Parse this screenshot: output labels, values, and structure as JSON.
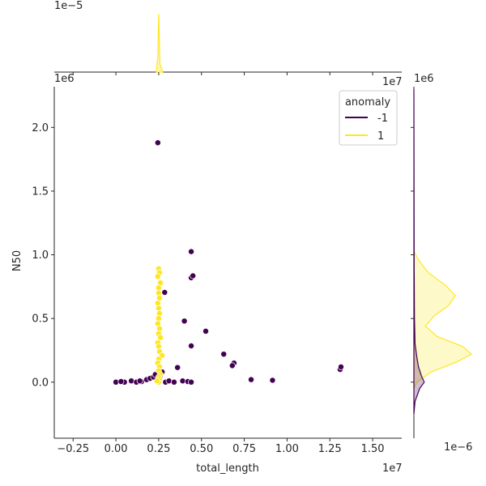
{
  "chart_data": {
    "type": "scatter",
    "title": "",
    "xlabel": "total_length",
    "ylabel": "N50",
    "x_offset_label": "1e7",
    "y_offset_label": "1e6",
    "top_marginal_offset_label": "1e−5",
    "right_marginal_offset_label": "1e6",
    "right_marginal_x_offset_label": "1e−6",
    "top_marginal_axis_offset": "1e7",
    "right_marginal_y_offset": "1e6",
    "xlim": [
      -0.36,
      1.67
    ],
    "ylim": [
      -0.44,
      2.32
    ],
    "x_ticks": [
      -0.25,
      0.0,
      0.25,
      0.5,
      0.75,
      1.0,
      1.25,
      1.5
    ],
    "x_tick_labels": [
      "−0.25",
      "0.00",
      "0.25",
      "0.50",
      "0.75",
      "1.00",
      "1.25",
      "1.50"
    ],
    "y_ticks": [
      0.0,
      0.5,
      1.0,
      1.5,
      2.0
    ],
    "y_tick_labels": [
      "0.0",
      "0.5",
      "1.0",
      "1.5",
      "2.0"
    ],
    "grid": false,
    "legend": {
      "title": "anomaly",
      "placement": "top-right",
      "entries": [
        {
          "label": "-1",
          "color": "#440154"
        },
        {
          "label": "1",
          "color": "#fde725"
        }
      ]
    },
    "series": [
      {
        "name": "-1",
        "color": "#440154",
        "points": [
          [
            0.245,
            1.88
          ],
          [
            0.44,
            1.025
          ],
          [
            0.44,
            0.82
          ],
          [
            0.45,
            0.835
          ],
          [
            0.285,
            0.705
          ],
          [
            0.4,
            0.48
          ],
          [
            0.525,
            0.4
          ],
          [
            0.44,
            0.285
          ],
          [
            0.63,
            0.22
          ],
          [
            0.69,
            0.15
          ],
          [
            0.68,
            0.13
          ],
          [
            0.36,
            0.115
          ],
          [
            0.79,
            0.02
          ],
          [
            0.915,
            0.015
          ],
          [
            1.31,
            0.1
          ],
          [
            1.315,
            0.12
          ],
          [
            0.0,
            0.0
          ],
          [
            0.05,
            0.0
          ],
          [
            0.09,
            0.01
          ],
          [
            0.12,
            0.0
          ],
          [
            0.15,
            0.005
          ],
          [
            0.18,
            0.02
          ],
          [
            0.2,
            0.03
          ],
          [
            0.22,
            0.04
          ],
          [
            0.23,
            0.06
          ],
          [
            0.26,
            0.05
          ],
          [
            0.29,
            0.0
          ],
          [
            0.31,
            0.01
          ],
          [
            0.34,
            0.0
          ],
          [
            0.39,
            0.01
          ],
          [
            0.42,
            0.005
          ],
          [
            0.44,
            0.0
          ],
          [
            0.14,
            0.01
          ],
          [
            0.03,
            0.005
          ],
          [
            0.27,
            0.08
          ]
        ]
      },
      {
        "name": "1",
        "color": "#fde725",
        "points": [
          [
            0.25,
            0.89
          ],
          [
            0.255,
            0.86
          ],
          [
            0.245,
            0.83
          ],
          [
            0.26,
            0.78
          ],
          [
            0.25,
            0.74
          ],
          [
            0.25,
            0.7
          ],
          [
            0.255,
            0.66
          ],
          [
            0.245,
            0.62
          ],
          [
            0.25,
            0.58
          ],
          [
            0.255,
            0.54
          ],
          [
            0.25,
            0.5
          ],
          [
            0.245,
            0.46
          ],
          [
            0.255,
            0.42
          ],
          [
            0.25,
            0.38
          ],
          [
            0.26,
            0.35
          ],
          [
            0.245,
            0.31
          ],
          [
            0.25,
            0.28
          ],
          [
            0.255,
            0.24
          ],
          [
            0.27,
            0.21
          ],
          [
            0.25,
            0.18
          ],
          [
            0.245,
            0.15
          ],
          [
            0.255,
            0.12
          ],
          [
            0.25,
            0.09
          ],
          [
            0.26,
            0.06
          ],
          [
            0.25,
            0.04
          ],
          [
            0.255,
            0.02
          ],
          [
            0.25,
            0.0
          ],
          [
            0.24,
            0.01
          ]
        ]
      }
    ],
    "top_marginal": {
      "series": [
        {
          "name": "-1",
          "peak_x": 0.25,
          "height": 0.0
        },
        {
          "name": "1",
          "peak_x": 0.25,
          "height": 1.0
        }
      ]
    },
    "right_marginal": {
      "density_1": [
        [
          -0.05,
          0.0
        ],
        [
          0.0,
          0.05
        ],
        [
          0.08,
          0.3
        ],
        [
          0.16,
          0.75
        ],
        [
          0.22,
          1.0
        ],
        [
          0.28,
          0.85
        ],
        [
          0.36,
          0.4
        ],
        [
          0.44,
          0.2
        ],
        [
          0.52,
          0.35
        ],
        [
          0.6,
          0.6
        ],
        [
          0.68,
          0.72
        ],
        [
          0.76,
          0.55
        ],
        [
          0.86,
          0.25
        ],
        [
          0.96,
          0.08
        ],
        [
          1.03,
          0.0
        ]
      ],
      "density_neg1": [
        [
          -0.25,
          0.0
        ],
        [
          -0.15,
          0.02
        ],
        [
          -0.05,
          0.1
        ],
        [
          0.0,
          0.18
        ],
        [
          0.05,
          0.13
        ],
        [
          0.12,
          0.08
        ],
        [
          0.2,
          0.05
        ],
        [
          0.3,
          0.02
        ],
        [
          0.5,
          0.01
        ],
        [
          0.9,
          0.005
        ],
        [
          1.5,
          0.003
        ],
        [
          2.3,
          0.0
        ]
      ]
    }
  }
}
